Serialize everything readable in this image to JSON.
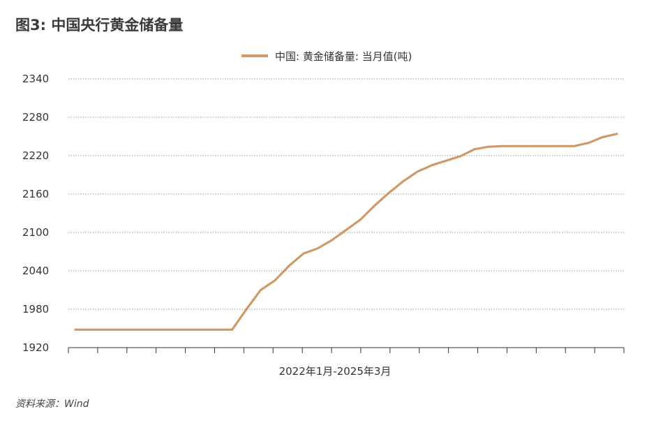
{
  "figure_title": "图3: 中国央行黄金储备量",
  "source": "资料来源：Wind",
  "colors": {
    "series": "#D09A68",
    "grid": "#9a9a9a",
    "axis": "#333333"
  },
  "chart_data": {
    "type": "line",
    "title": "",
    "xlabel": "2022年1月-2025年3月",
    "ylabel": "",
    "ylim": [
      1920,
      2340
    ],
    "yticks": [
      "2340",
      "2280",
      "2220",
      "2160",
      "2100",
      "2040",
      "1980",
      "1920"
    ],
    "legend": "top-center",
    "grid": "horizontal-dotted",
    "x": [
      "2022-01",
      "2022-02",
      "2022-03",
      "2022-04",
      "2022-05",
      "2022-06",
      "2022-07",
      "2022-08",
      "2022-09",
      "2022-10",
      "2022-11",
      "2022-12",
      "2023-01",
      "2023-02",
      "2023-03",
      "2023-04",
      "2023-05",
      "2023-06",
      "2023-07",
      "2023-08",
      "2023-09",
      "2023-10",
      "2023-11",
      "2023-12",
      "2024-01",
      "2024-02",
      "2024-03",
      "2024-04",
      "2024-05",
      "2024-06",
      "2024-07",
      "2024-08",
      "2024-09",
      "2024-10",
      "2024-11",
      "2024-12",
      "2025-01",
      "2025-02",
      "2025-03"
    ],
    "series": [
      {
        "name": "中国: 黄金储备量: 当月值(吨)",
        "values": [
          1948,
          1948,
          1948,
          1948,
          1948,
          1948,
          1948,
          1948,
          1948,
          1948,
          1948,
          1948,
          1980,
          2010,
          2025,
          2048,
          2067,
          2075,
          2088,
          2104,
          2120,
          2142,
          2162,
          2180,
          2195,
          2205,
          2212,
          2219,
          2230,
          2234,
          2235,
          2235,
          2235,
          2235,
          2235,
          2235,
          2240,
          2249,
          2254
        ]
      }
    ]
  }
}
